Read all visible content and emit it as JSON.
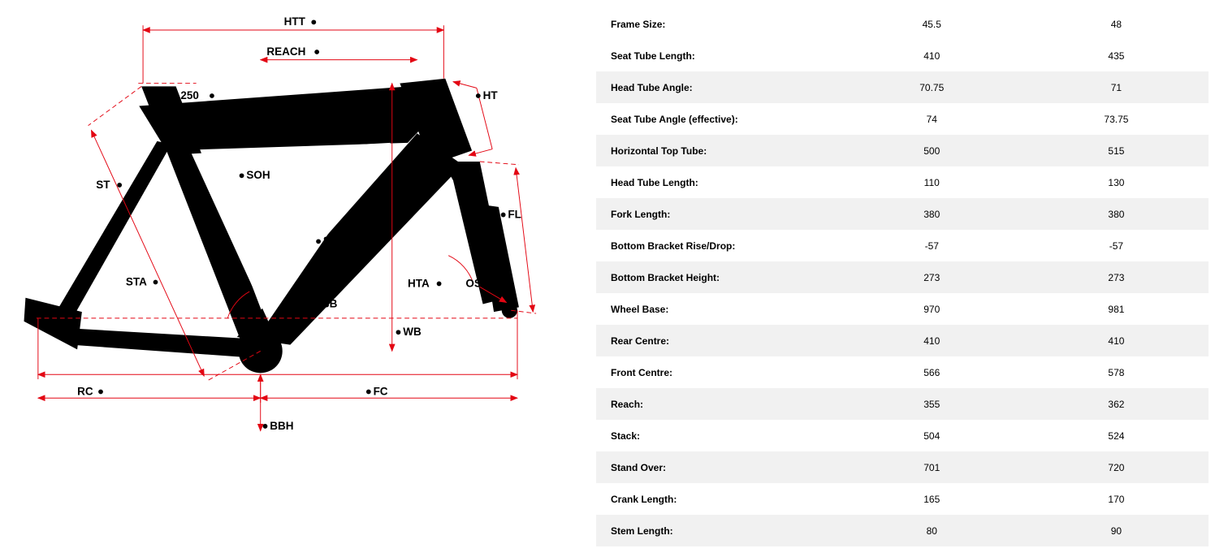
{
  "diagram": {
    "stroke_color": "#e30613",
    "frame_color": "#000000",
    "bg": "#ffffff",
    "label_font_size": 14,
    "label_font_weight": 700,
    "value_250": "250",
    "labels": {
      "HTT": "HTT",
      "REACH": "REACH",
      "HT": "HT",
      "ST": "ST",
      "SOH": "SOH",
      "FL": "FL",
      "STACK": "STACK",
      "STA": "STA",
      "HTA": "HTA",
      "OS": "OS",
      "BB": "BB",
      "WB": "WB",
      "RC": "RC",
      "FC": "FC",
      "BBH": "BBH"
    }
  },
  "table": {
    "stripe_color": "#f1f1f1",
    "font_size": 12,
    "label_font_weight": 700,
    "rows": [
      {
        "label": "Frame Size:",
        "v1": "45.5",
        "v2": "48",
        "stripe": false
      },
      {
        "label": "Seat Tube Length:",
        "v1": "410",
        "v2": "435",
        "stripe": false
      },
      {
        "label": "Head Tube Angle:",
        "v1": "70.75",
        "v2": "71",
        "stripe": true
      },
      {
        "label": "Seat Tube Angle (effective):",
        "v1": "74",
        "v2": "73.75",
        "stripe": false
      },
      {
        "label": "Horizontal Top Tube:",
        "v1": "500",
        "v2": "515",
        "stripe": true
      },
      {
        "label": "Head Tube Length:",
        "v1": "110",
        "v2": "130",
        "stripe": false
      },
      {
        "label": "Fork Length:",
        "v1": "380",
        "v2": "380",
        "stripe": true
      },
      {
        "label": "Bottom Bracket Rise/Drop:",
        "v1": "-57",
        "v2": "-57",
        "stripe": false
      },
      {
        "label": "Bottom Bracket Height:",
        "v1": "273",
        "v2": "273",
        "stripe": true
      },
      {
        "label": "Wheel Base:",
        "v1": "970",
        "v2": "981",
        "stripe": false
      },
      {
        "label": "Rear Centre:",
        "v1": "410",
        "v2": "410",
        "stripe": true
      },
      {
        "label": "Front Centre:",
        "v1": "566",
        "v2": "578",
        "stripe": false
      },
      {
        "label": "Reach:",
        "v1": "355",
        "v2": "362",
        "stripe": true
      },
      {
        "label": "Stack:",
        "v1": "504",
        "v2": "524",
        "stripe": false
      },
      {
        "label": "Stand Over:",
        "v1": "701",
        "v2": "720",
        "stripe": true
      },
      {
        "label": "Crank Length:",
        "v1": "165",
        "v2": "170",
        "stripe": false
      },
      {
        "label": "Stem Length:",
        "v1": "80",
        "v2": "90",
        "stripe": true
      }
    ]
  }
}
